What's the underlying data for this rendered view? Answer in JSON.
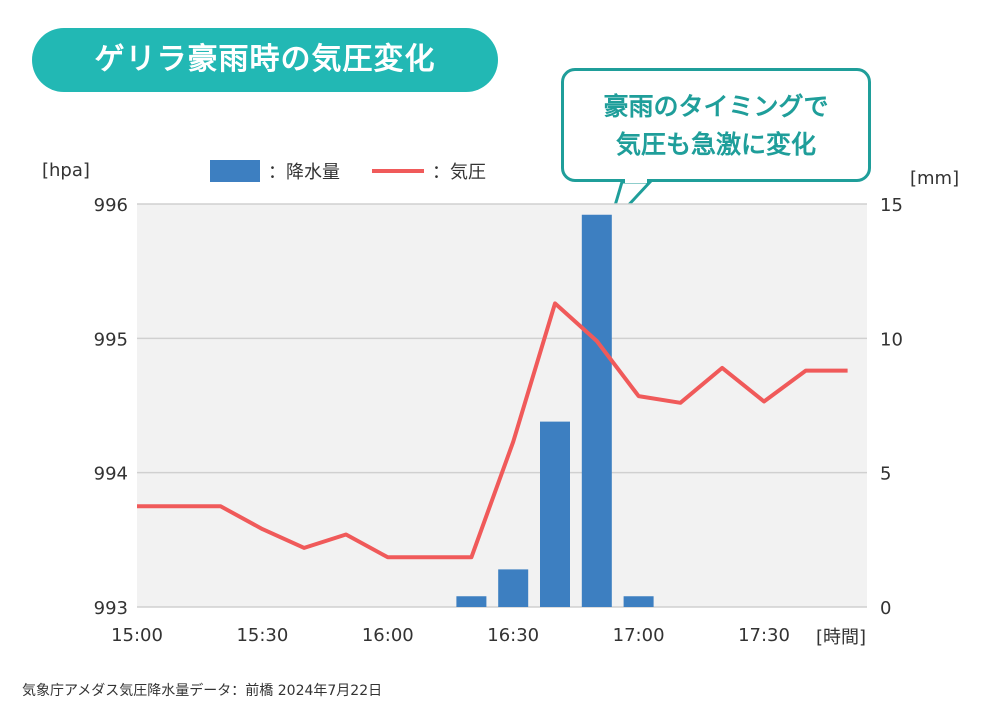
{
  "title": "ゲリラ豪雨時の気圧変化",
  "callout": {
    "line1": "豪雨のタイミングで",
    "line2": "気圧も急激に変化"
  },
  "legend": {
    "bar": "：降水量",
    "line": "：気圧"
  },
  "source": "気象庁アメダス気圧降水量データ：前橋 2024年7月22日",
  "colors": {
    "title_bg": "#22b8b4",
    "callout": "#1f9e9a",
    "bar": "#3d7fc1",
    "line": "#f05a5a",
    "plot_bg": "#f2f2f2"
  },
  "chart_data": {
    "type": "bar+line",
    "left_axis": {
      "unit": "[hpa]",
      "ticks": [
        996,
        995,
        994,
        993
      ],
      "ylim": [
        993,
        996
      ]
    },
    "right_axis": {
      "unit": "[mm]",
      "ticks": [
        15,
        10,
        5,
        0
      ],
      "ylim": [
        0,
        15
      ]
    },
    "x_axis": {
      "unit": "[時間]",
      "tick_labels": [
        "15:00",
        "15:30",
        "16:00",
        "16:30",
        "17:00",
        "17:30"
      ]
    },
    "times": [
      "15:00",
      "15:10",
      "15:20",
      "15:30",
      "15:40",
      "15:50",
      "16:00",
      "16:10",
      "16:20",
      "16:30",
      "16:40",
      "16:50",
      "17:00",
      "17:10",
      "17:20",
      "17:30",
      "17:40",
      "17:50"
    ],
    "series": [
      {
        "name": "気圧",
        "type": "line",
        "axis": "left",
        "values": [
          993.75,
          993.75,
          993.75,
          993.58,
          993.44,
          993.54,
          993.37,
          993.37,
          993.37,
          994.23,
          995.26,
          994.98,
          994.57,
          994.52,
          994.78,
          994.53,
          994.76,
          994.76
        ]
      },
      {
        "name": "降水量",
        "type": "bar",
        "axis": "right",
        "values": [
          0,
          0,
          0,
          0,
          0,
          0,
          0,
          0,
          0.4,
          1.4,
          6.9,
          14.6,
          0.4,
          0,
          0,
          0,
          0,
          0
        ]
      }
    ]
  }
}
